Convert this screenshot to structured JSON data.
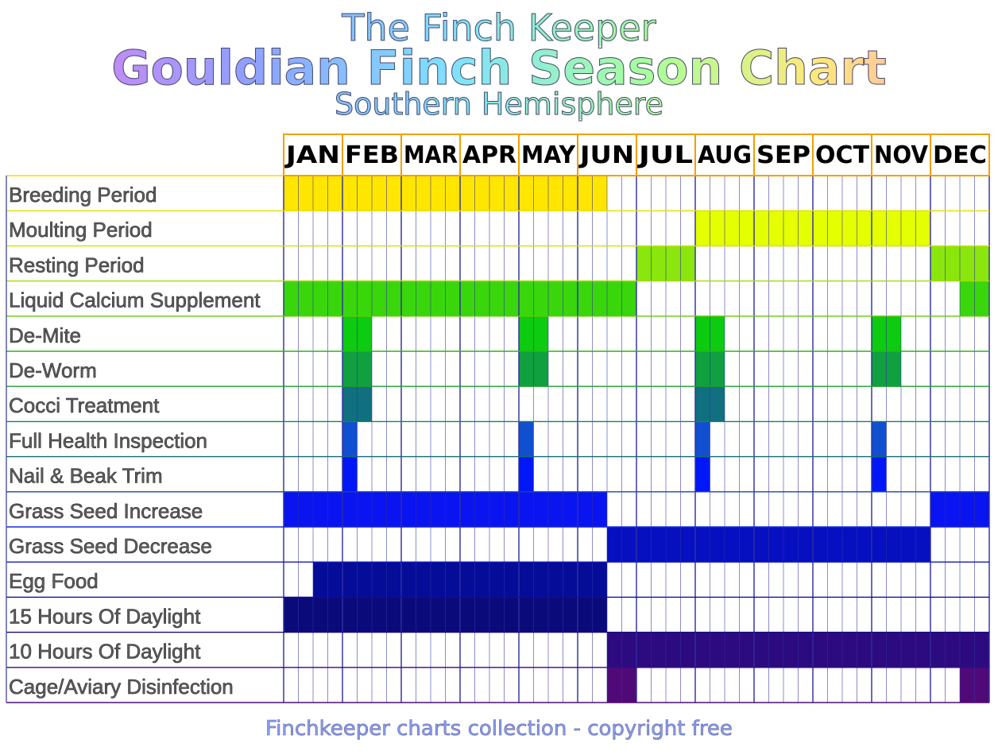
{
  "header": {
    "site_name": "The Finch Keeper",
    "title": "Gouldian Finch Season Chart",
    "subtitle": "Southern Hemisphere"
  },
  "footer": "Finchkeeper charts collection - copyright free",
  "chart_data": {
    "type": "table",
    "months": [
      "JAN",
      "FEB",
      "MAR",
      "APR",
      "MAY",
      "JUN",
      "JUL",
      "AUG",
      "SEP",
      "OCT",
      "NOV",
      "DEC"
    ],
    "subdivisions_per_month": 4,
    "rows": [
      {
        "label": "Breeding Period",
        "color": "#ffe600",
        "ranges": [
          [
            1,
            22
          ]
        ]
      },
      {
        "label": "Moulting Period",
        "color": "#e4ff00",
        "ranges": [
          [
            29,
            44
          ]
        ]
      },
      {
        "label": "Resting Period",
        "color": "#8ae60c",
        "ranges": [
          [
            25,
            28
          ],
          [
            45,
            48
          ]
        ]
      },
      {
        "label": "Liquid Calcium Supplement",
        "color": "#3ad60c",
        "ranges": [
          [
            1,
            24
          ],
          [
            47,
            48
          ]
        ]
      },
      {
        "label": "De-Mite",
        "color": "#0ccb10",
        "ranges": [
          [
            5,
            6
          ],
          [
            17,
            18
          ],
          [
            29,
            30
          ],
          [
            41,
            42
          ]
        ]
      },
      {
        "label": "De-Worm",
        "color": "#10a040",
        "ranges": [
          [
            5,
            6
          ],
          [
            17,
            18
          ],
          [
            29,
            30
          ],
          [
            41,
            42
          ]
        ]
      },
      {
        "label": "Cocci Treatment",
        "color": "#107080",
        "ranges": [
          [
            5,
            6
          ],
          [
            29,
            30
          ]
        ]
      },
      {
        "label": "Full Health Inspection",
        "color": "#1050d0",
        "ranges": [
          [
            5,
            5
          ],
          [
            17,
            17
          ],
          [
            29,
            29
          ],
          [
            41,
            41
          ]
        ]
      },
      {
        "label": "Nail & Beak Trim",
        "color": "#0018f8",
        "ranges": [
          [
            5,
            5
          ],
          [
            17,
            17
          ],
          [
            29,
            29
          ],
          [
            41,
            41
          ]
        ]
      },
      {
        "label": "Grass Seed Increase",
        "color": "#0a14f0",
        "ranges": [
          [
            1,
            22
          ],
          [
            45,
            48
          ]
        ]
      },
      {
        "label": "Grass Seed Decrease",
        "color": "#0610c0",
        "ranges": [
          [
            23,
            44
          ]
        ]
      },
      {
        "label": "Egg Food",
        "color": "#040c98",
        "ranges": [
          [
            3,
            22
          ]
        ]
      },
      {
        "label": "15 Hours Of Daylight",
        "color": "#0a0a7a",
        "ranges": [
          [
            1,
            22
          ]
        ]
      },
      {
        "label": "10 Hours Of Daylight",
        "color": "#2c0a80",
        "ranges": [
          [
            23,
            48
          ]
        ]
      },
      {
        "label": "Cage/Aviary Disinfection",
        "color": "#500a78",
        "ranges": [
          [
            23,
            24
          ],
          [
            47,
            48
          ]
        ]
      }
    ]
  }
}
